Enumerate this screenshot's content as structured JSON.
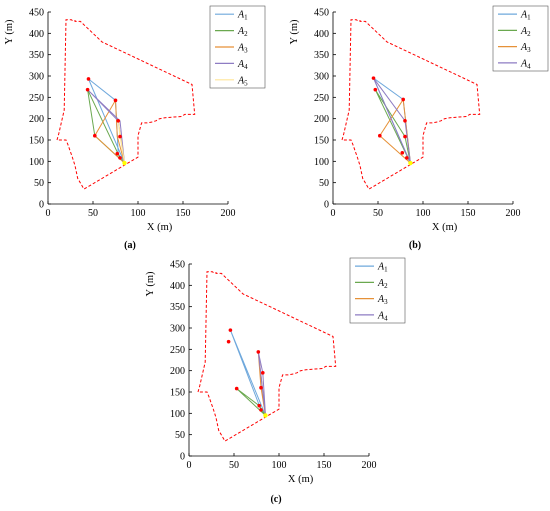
{
  "chart_data": [
    {
      "type": "line",
      "panel_label": "(a)",
      "xlabel": "X (m)",
      "ylabel": "Y (m)",
      "xlim": [
        0,
        200
      ],
      "ylim": [
        0,
        450
      ],
      "xticks": [
        "0",
        "50",
        "100",
        "150",
        "200"
      ],
      "yticks": [
        "0",
        "50",
        "100",
        "150",
        "200",
        "250",
        "300",
        "350",
        "400",
        "450"
      ],
      "legend_position": "top-right",
      "boundary": {
        "color": "#ff0000",
        "style": "dashed",
        "x": [
          10,
          12,
          18,
          20,
          26,
          27,
          30,
          30,
          36,
          60,
          160,
          163,
          152,
          148,
          140,
          130,
          124,
          120,
          115,
          110,
          104,
          100,
          100,
          40,
          33,
          30,
          27,
          22,
          20,
          10
        ],
        "y": [
          150,
          165,
          220,
          432,
          432,
          430,
          430,
          428,
          428,
          380,
          280,
          210,
          210,
          205,
          204,
          202,
          200,
          195,
          192,
          190,
          190,
          160,
          110,
          35,
          60,
          90,
          110,
          140,
          150,
          150
        ]
      },
      "points": {
        "color": "#ff0000",
        "marker": "circle",
        "x": [
          45,
          44,
          52,
          75,
          78,
          80,
          77,
          80
        ],
        "y": [
          293,
          268,
          160,
          243,
          195,
          158,
          118,
          108
        ]
      },
      "depot": {
        "color": "#ffff00",
        "marker": "circle",
        "x": 85,
        "y": 96
      },
      "series": [
        {
          "name": "A",
          "sub": "1",
          "color": "#6fa8dc",
          "x": [
            85,
            78,
            75,
            45,
            85
          ],
          "y": [
            96,
            118,
            243,
            293,
            96
          ]
        },
        {
          "name": "A",
          "sub": "2",
          "color": "#6aa84f",
          "x": [
            85,
            80,
            44,
            52,
            85
          ],
          "y": [
            96,
            108,
            268,
            160,
            96
          ]
        },
        {
          "name": "A",
          "sub": "3",
          "color": "#e69138",
          "x": [
            85,
            77,
            75,
            52,
            85
          ],
          "y": [
            96,
            158,
            243,
            160,
            96
          ]
        },
        {
          "name": "A",
          "sub": "4",
          "color": "#8e7cc3",
          "x": [
            85,
            80,
            44,
            78,
            85
          ],
          "y": [
            96,
            195,
            268,
            195,
            96
          ]
        },
        {
          "name": "A",
          "sub": "5",
          "color": "#ffe599",
          "x": [
            85,
            80,
            78,
            85
          ],
          "y": [
            96,
            158,
            195,
            96
          ]
        }
      ]
    },
    {
      "type": "line",
      "panel_label": "(b)",
      "xlabel": "X (m)",
      "ylabel": "Y (m)",
      "xlim": [
        0,
        200
      ],
      "ylim": [
        0,
        450
      ],
      "xticks": [
        "0",
        "50",
        "100",
        "150",
        "200"
      ],
      "yticks": [
        "0",
        "50",
        "100",
        "150",
        "200",
        "250",
        "300",
        "350",
        "400",
        "450"
      ],
      "legend_position": "top-right",
      "boundary": {
        "color": "#ff0000",
        "style": "dashed",
        "x": [
          10,
          12,
          18,
          20,
          26,
          27,
          30,
          30,
          36,
          60,
          160,
          163,
          152,
          148,
          140,
          130,
          124,
          120,
          115,
          110,
          104,
          100,
          100,
          40,
          33,
          30,
          27,
          22,
          20,
          10
        ],
        "y": [
          150,
          165,
          220,
          432,
          432,
          430,
          430,
          428,
          428,
          380,
          280,
          210,
          210,
          205,
          204,
          202,
          200,
          195,
          192,
          190,
          190,
          160,
          110,
          35,
          60,
          90,
          110,
          140,
          150,
          150
        ]
      },
      "points": {
        "color": "#ff0000",
        "marker": "circle",
        "x": [
          45,
          47,
          52,
          78,
          80,
          80,
          77,
          82
        ],
        "y": [
          295,
          268,
          160,
          245,
          195,
          158,
          120,
          108
        ]
      },
      "depot": {
        "color": "#ffff00",
        "marker": "circle",
        "x": 86,
        "y": 96
      },
      "series": [
        {
          "name": "A",
          "sub": "1",
          "color": "#6fa8dc",
          "x": [
            86,
            78,
            45,
            86
          ],
          "y": [
            96,
            245,
            295,
            96
          ]
        },
        {
          "name": "A",
          "sub": "2",
          "color": "#6aa84f",
          "x": [
            86,
            47,
            80,
            86
          ],
          "y": [
            96,
            268,
            158,
            96
          ]
        },
        {
          "name": "A",
          "sub": "3",
          "color": "#e69138",
          "x": [
            86,
            52,
            78,
            86
          ],
          "y": [
            96,
            160,
            245,
            96
          ]
        },
        {
          "name": "A",
          "sub": "4",
          "color": "#8e7cc3",
          "x": [
            86,
            45,
            80,
            86
          ],
          "y": [
            96,
            295,
            195,
            96
          ]
        }
      ]
    },
    {
      "type": "line",
      "panel_label": "(c)",
      "xlabel": "X (m)",
      "ylabel": "Y (m)",
      "xlim": [
        0,
        200
      ],
      "ylim": [
        0,
        450
      ],
      "xticks": [
        "0",
        "50",
        "100",
        "150",
        "200"
      ],
      "yticks": [
        "0",
        "50",
        "100",
        "150",
        "200",
        "250",
        "300",
        "350",
        "400",
        "450"
      ],
      "legend_position": "top-right",
      "boundary": {
        "color": "#ff0000",
        "style": "dashed",
        "x": [
          10,
          12,
          18,
          20,
          26,
          27,
          30,
          30,
          36,
          60,
          160,
          163,
          152,
          148,
          140,
          130,
          124,
          120,
          115,
          110,
          104,
          100,
          100,
          40,
          33,
          30,
          27,
          22,
          20,
          10
        ],
        "y": [
          150,
          165,
          220,
          432,
          432,
          430,
          430,
          428,
          428,
          380,
          280,
          210,
          210,
          205,
          204,
          202,
          200,
          195,
          192,
          190,
          190,
          160,
          110,
          35,
          60,
          90,
          110,
          140,
          150,
          150
        ]
      },
      "points": {
        "color": "#ff0000",
        "marker": "circle",
        "x": [
          46,
          44,
          53,
          77,
          82,
          80,
          78,
          80
        ],
        "y": [
          295,
          268,
          158,
          244,
          195,
          160,
          118,
          108
        ]
      },
      "depot": {
        "color": "#ffff00",
        "marker": "circle",
        "x": 85,
        "y": 95
      },
      "series": [
        {
          "name": "A",
          "sub": "1",
          "color": "#6fa8dc",
          "x": [
            85,
            80,
            46,
            85
          ],
          "y": [
            95,
            108,
            295,
            95
          ]
        },
        {
          "name": "A",
          "sub": "2",
          "color": "#6aa84f",
          "x": [
            85,
            53,
            78,
            85
          ],
          "y": [
            95,
            158,
            118,
            95
          ]
        },
        {
          "name": "A",
          "sub": "3",
          "color": "#e69138",
          "x": [
            85,
            80,
            77,
            85
          ],
          "y": [
            95,
            160,
            244,
            95
          ]
        },
        {
          "name": "A",
          "sub": "4",
          "color": "#8e7cc3",
          "x": [
            85,
            82,
            77,
            85
          ],
          "y": [
            95,
            195,
            244,
            95
          ]
        }
      ]
    }
  ]
}
